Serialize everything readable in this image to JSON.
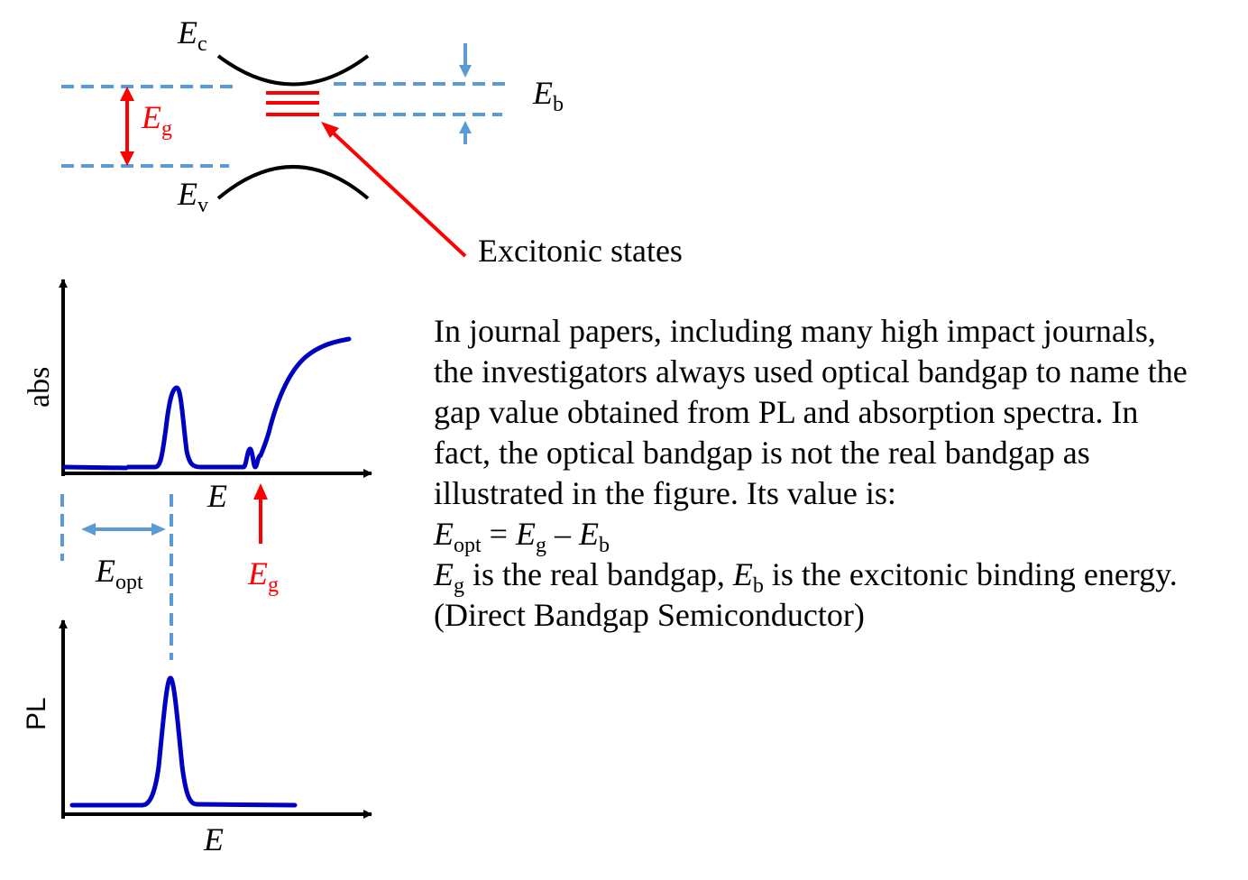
{
  "colors": {
    "ink": "#000000",
    "band_dashed": "#5B9BD5",
    "exciton_red": "#FF0000",
    "curve_blue": "#0000C0"
  },
  "band_diagram": {
    "ec": {
      "sym": "E",
      "sub": "c"
    },
    "ev": {
      "sym": "E",
      "sub": "v"
    },
    "eg": {
      "sym": "E",
      "sub": "g"
    },
    "eb": {
      "sym": "E",
      "sub": "b"
    },
    "excitonic_label": "Excitonic states"
  },
  "abs_plot": {
    "ylabel": "abs",
    "xlabel": "E",
    "eg_marker": {
      "sym": "E",
      "sub": "g"
    },
    "eopt": {
      "sym": "E",
      "sub": "opt"
    }
  },
  "pl_plot": {
    "ylabel": "PL",
    "xlabel": "E"
  },
  "text": {
    "line1": "In journal papers, including many high impact journals,",
    "line2": "the investigators always used optical bandgap to name the",
    "line3": "gap value obtained from PL and absorption spectra. In",
    "line4": "fact, the optical bandgap is not the real bandgap as",
    "line5": "illustrated in the figure. Its value is:",
    "eq": {
      "e": "E",
      "opt": "opt",
      "eq": " = ",
      "g": "g",
      "minus": " – ",
      "b": "b"
    },
    "def": {
      "e": "E",
      "g": "g",
      "mid": " is the real bandgap, ",
      "b": "b",
      "tail": " is the excitonic binding energy."
    },
    "last": "(Direct Bandgap Semiconductor)"
  }
}
